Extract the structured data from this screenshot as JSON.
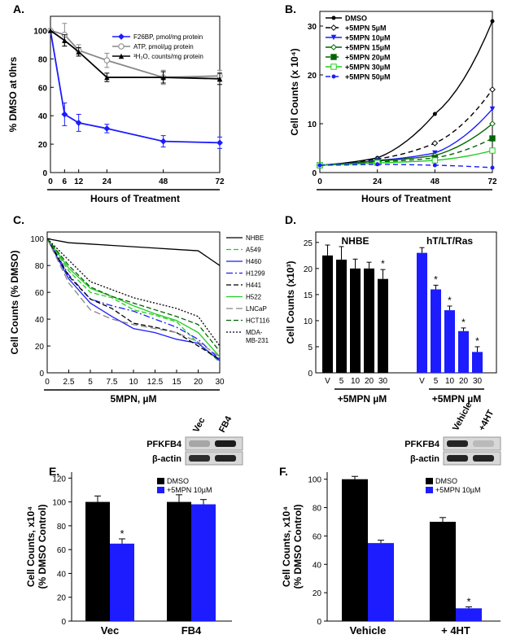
{
  "chart_data": [
    {
      "panel": "A.",
      "type": "line",
      "xlabel": "Hours of Treatment",
      "ylabel": "% DMSO at 0hrs",
      "xticks": [
        0,
        6,
        12,
        24,
        48,
        72
      ],
      "yticks": [
        0,
        20,
        40,
        60,
        80,
        100
      ],
      "xlim": [
        0,
        72
      ],
      "ylim": [
        0,
        110
      ],
      "legend_position": "top-right",
      "series": [
        {
          "name": "F26BP, pmol/mg protein",
          "color": "#1c1cff",
          "marker": "diamond",
          "x": [
            0,
            6,
            12,
            24,
            48,
            72
          ],
          "y": [
            100,
            41,
            35,
            31,
            22,
            21
          ],
          "err": [
            0,
            8,
            6,
            3,
            4,
            4
          ]
        },
        {
          "name": "ATP, pmol/µg protein",
          "color": "#888888",
          "marker": "circle",
          "x": [
            0,
            6,
            12,
            24,
            48,
            72
          ],
          "y": [
            100,
            97,
            86,
            79,
            67,
            68
          ],
          "err": [
            0,
            8,
            4,
            5,
            5,
            4
          ]
        },
        {
          "name": "³H₂O, counts/mg protein",
          "color": "#000000",
          "marker": "triangle",
          "x": [
            0,
            6,
            12,
            24,
            48,
            72
          ],
          "y": [
            100,
            93,
            85,
            67,
            67,
            66
          ],
          "err": [
            0,
            4,
            3,
            3,
            4,
            4
          ]
        }
      ]
    },
    {
      "panel": "B.",
      "type": "line",
      "xlabel": "Hours of Treatment",
      "ylabel": "Cell Counts (x 10⁴)",
      "xticks": [
        0,
        24,
        48,
        72
      ],
      "yticks": [
        0,
        10,
        20,
        30
      ],
      "xlim": [
        0,
        72
      ],
      "ylim": [
        0,
        33
      ],
      "legend_position": "top-left",
      "series": [
        {
          "name": "DMSO",
          "color": "#000000",
          "dash": "",
          "marker": "dot",
          "x": [
            0,
            24,
            48,
            72
          ],
          "y": [
            1.5,
            3,
            12,
            31
          ]
        },
        {
          "name": "+5MPN  5µM",
          "color": "#000000",
          "dash": "6,4",
          "marker": "diamond-open",
          "x": [
            0,
            24,
            48,
            72
          ],
          "y": [
            1.5,
            2.8,
            6,
            17
          ]
        },
        {
          "name": "+5MPN 10µM",
          "color": "#1c1cff",
          "dash": "",
          "marker": "triangle-down",
          "x": [
            0,
            24,
            48,
            72
          ],
          "y": [
            1.5,
            2.5,
            4,
            13
          ]
        },
        {
          "name": "+5MPN 15µM",
          "color": "#006400",
          "dash": "",
          "marker": "diamond-open",
          "x": [
            0,
            24,
            48,
            72
          ],
          "y": [
            1.5,
            2.4,
            3.5,
            10
          ]
        },
        {
          "name": "+5MPN 20µM",
          "color": "#006400",
          "dash": "6,4",
          "marker": "square",
          "x": [
            0,
            24,
            48,
            72
          ],
          "y": [
            1.5,
            2.2,
            3.0,
            7
          ]
        },
        {
          "name": "+5MPN 30µM",
          "color": "#22cc22",
          "dash": "",
          "marker": "square-open",
          "x": [
            0,
            24,
            48,
            72
          ],
          "y": [
            1.5,
            2.0,
            2.5,
            4.5
          ]
        },
        {
          "name": "+5MPN 50µM",
          "color": "#1c1cff",
          "dash": "6,4",
          "marker": "dot",
          "x": [
            0,
            24,
            48,
            72
          ],
          "y": [
            1.5,
            1.7,
            1.5,
            1.0
          ]
        }
      ]
    },
    {
      "panel": "C.",
      "type": "line",
      "xlabel": "5MPN, µM",
      "ylabel": "Cell Counts (% DMSO)",
      "xticks": [
        0,
        2.5,
        5,
        7.5,
        10,
        12.5,
        15,
        20,
        30
      ],
      "yticks": [
        0,
        20,
        40,
        60,
        80,
        100
      ],
      "ylim": [
        0,
        105
      ],
      "legend_position": "right",
      "series": [
        {
          "name": "NHBE",
          "color": "#000000",
          "dash": "",
          "y": [
            100,
            97,
            96,
            95,
            94,
            93,
            92,
            91,
            80
          ]
        },
        {
          "name": "A549",
          "color": "#22cc22",
          "dash": "6,3",
          "y": [
            100,
            76,
            60,
            56,
            47,
            43,
            38,
            22,
            8
          ]
        },
        {
          "name": "H460",
          "color": "#1c1cff",
          "dash": "",
          "y": [
            100,
            70,
            52,
            42,
            33,
            30,
            25,
            22,
            9
          ]
        },
        {
          "name": "H1299",
          "color": "#1c1cff",
          "dash": "8,3,2,3",
          "y": [
            100,
            73,
            55,
            50,
            46,
            40,
            34,
            25,
            10
          ]
        },
        {
          "name": "H441",
          "color": "#000000",
          "dash": "6,3",
          "y": [
            100,
            72,
            55,
            48,
            37,
            34,
            30,
            20,
            10
          ]
        },
        {
          "name": "H522",
          "color": "#22cc22",
          "dash": "",
          "y": [
            100,
            78,
            63,
            57,
            50,
            44,
            39,
            30,
            12
          ]
        },
        {
          "name": "LNCaP",
          "color": "#888888",
          "dash": "8,4",
          "y": [
            100,
            67,
            47,
            40,
            36,
            33,
            30,
            23,
            12
          ]
        },
        {
          "name": "HCT116",
          "color": "#006400",
          "dash": "6,3",
          "y": [
            100,
            80,
            64,
            57,
            52,
            47,
            42,
            36,
            16
          ]
        },
        {
          "name": "MDA-MB-231",
          "color": "#000000",
          "dash": "2,2",
          "y": [
            100,
            84,
            68,
            62,
            56,
            52,
            48,
            42,
            20
          ]
        }
      ]
    },
    {
      "panel": "D.",
      "type": "bar",
      "ylabel": "Cell Counts (x10³)",
      "yticks": [
        0,
        5,
        10,
        15,
        20,
        25
      ],
      "ylim": [
        0,
        27
      ],
      "groups": [
        {
          "title": "NHBE",
          "color": "#000000",
          "categories": [
            "V",
            "5",
            "10",
            "20",
            "30"
          ],
          "values": [
            22.5,
            21.7,
            20.0,
            20.0,
            18.0
          ],
          "err": [
            2.0,
            2.5,
            1.8,
            1.2,
            1.8
          ],
          "sig": [
            "",
            "",
            "",
            "",
            "*"
          ],
          "xlabel": "+5MPN µM"
        },
        {
          "title": "hT/LT/Ras",
          "color": "#1c1cff",
          "categories": [
            "V",
            "5",
            "10",
            "20",
            "30"
          ],
          "values": [
            23.0,
            16.0,
            12.0,
            8.0,
            4.0
          ],
          "err": [
            1.0,
            0.8,
            0.8,
            0.6,
            1.0
          ],
          "sig": [
            "",
            "*",
            "*",
            "*",
            "*"
          ],
          "xlabel": "+5MPN µM"
        }
      ]
    },
    {
      "panel": "E.",
      "type": "bar",
      "ylabel": "Cell Counts, x10⁴",
      "ylabel2": "(% DMSO Control)",
      "yticks": [
        0,
        20,
        40,
        60,
        80,
        100,
        120
      ],
      "ylim": [
        0,
        125
      ],
      "categories": [
        "Vec",
        "FB4"
      ],
      "legend_position": "top-left",
      "series": [
        {
          "name": "DMSO",
          "color": "#000000",
          "values": [
            100,
            100
          ],
          "err": [
            5,
            6
          ],
          "sig": [
            "",
            ""
          ]
        },
        {
          "name": "+5MPN 10µM",
          "color": "#1c1cff",
          "values": [
            65,
            98
          ],
          "err": [
            4,
            4
          ],
          "sig": [
            "*",
            ""
          ]
        }
      ]
    },
    {
      "panel": "F.",
      "type": "bar",
      "ylabel": "Cell Counts, x10⁴",
      "ylabel2": "(% DMSO Control)",
      "yticks": [
        0,
        20,
        40,
        60,
        80,
        100
      ],
      "ylim": [
        0,
        105
      ],
      "categories": [
        "Vehicle",
        "+ 4HT"
      ],
      "legend_position": "top-right",
      "series": [
        {
          "name": "DMSO",
          "color": "#000000",
          "values": [
            100,
            70
          ],
          "err": [
            2,
            3
          ],
          "sig": [
            "",
            ""
          ]
        },
        {
          "name": "+5MPN 10µM",
          "color": "#1c1cff",
          "values": [
            55,
            9
          ],
          "err": [
            2,
            1
          ],
          "sig": [
            "",
            "*"
          ]
        }
      ]
    }
  ],
  "blots": {
    "E": {
      "lanes": [
        "Vec",
        "FB4"
      ],
      "rows": [
        "PFKFB4",
        "β-actin"
      ]
    },
    "F": {
      "lanes": [
        "Vehicle",
        "+4HT"
      ],
      "rows": [
        "PFKFB4",
        "β-actin"
      ]
    }
  }
}
